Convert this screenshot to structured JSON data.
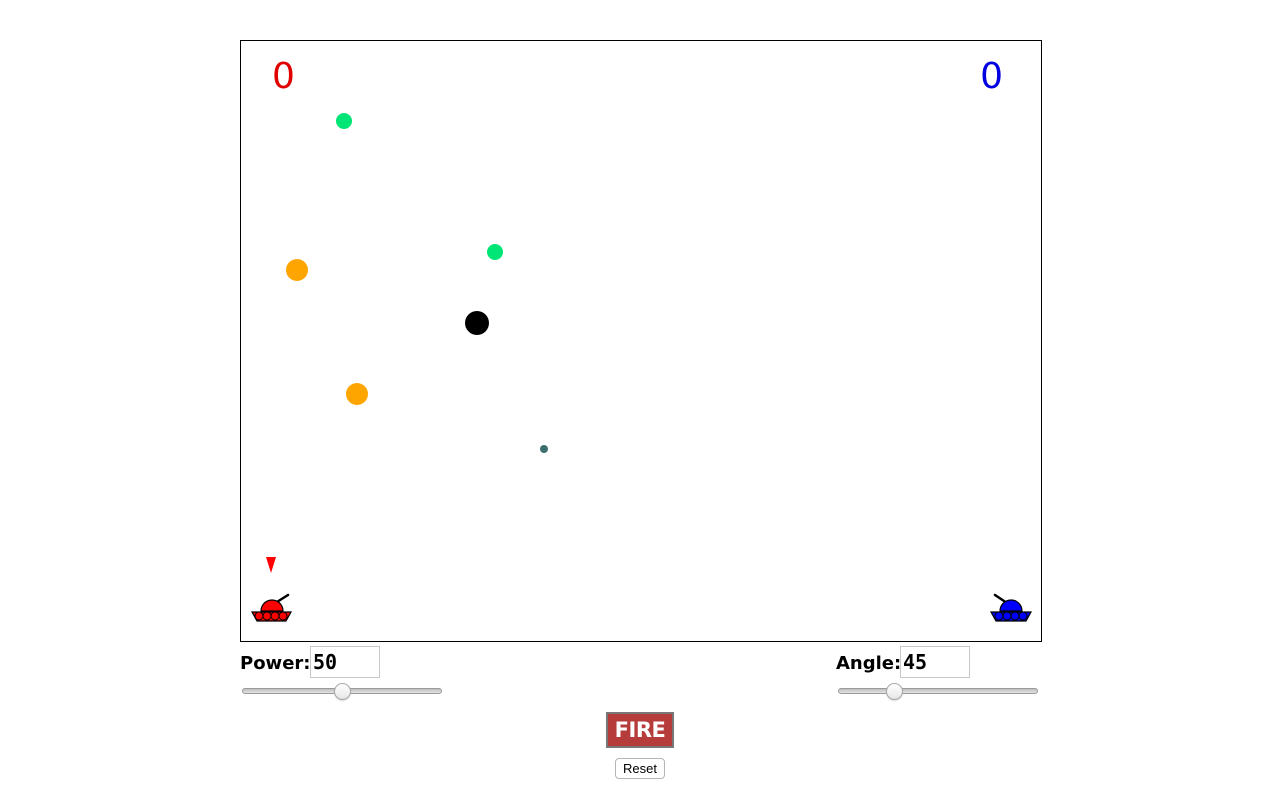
{
  "scores": {
    "left": "0",
    "right": "0",
    "left_color": "#e00000",
    "right_color": "#0000e0"
  },
  "power": {
    "label": "Power:",
    "value": "50",
    "slider_fraction": 0.5
  },
  "angle": {
    "label": "Angle:",
    "value": "45",
    "slider_fraction": 0.26
  },
  "buttons": {
    "fire_label": "FIRE",
    "reset_label": "Reset"
  },
  "colors": {
    "left_tank": "#ff0000",
    "right_tank": "#0000ff",
    "green_orb": "#00e676",
    "orange_orb": "#ffa500",
    "black_orb": "#000000",
    "projectile": "#3c6e6e",
    "fire_button": "#b63c3c"
  },
  "game_objects": {
    "left_tank": "red-tank-icon",
    "right_tank": "blue-tank-icon",
    "turn_indicator": "red-down-triangle-icon"
  }
}
